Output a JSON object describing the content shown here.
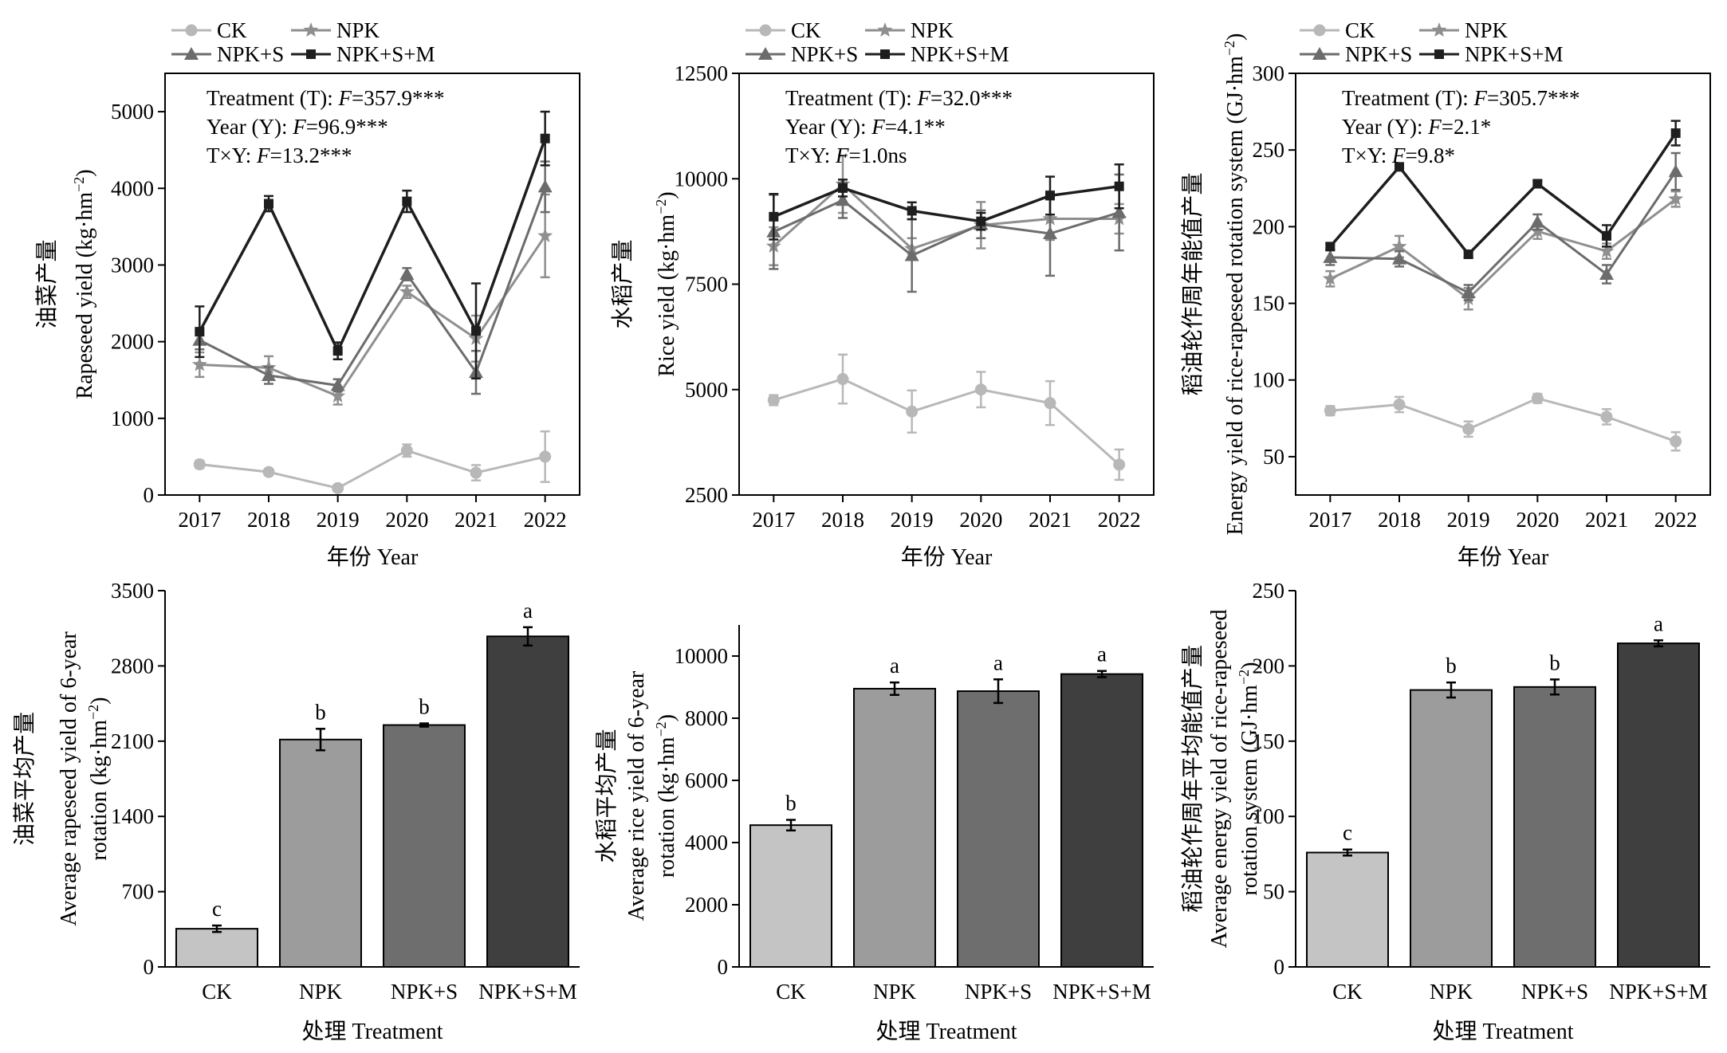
{
  "colors": {
    "CK": "#b8b8b8",
    "NPK": "#8f8f8f",
    "NPK+S": "#6c6c6c",
    "NPK+S+M": "#1e1e1e",
    "bar_CK": "#c4c4c4",
    "bar_NPK": "#9c9c9c",
    "bar_NPK+S": "#6e6e6e",
    "bar_NPK+S+M": "#3f3f3f"
  },
  "legend": {
    "ck": "CK",
    "npk": "NPK",
    "npks": "NPK+S",
    "npksm": "NPK+S+M"
  },
  "chart_data": [
    {
      "type": "line",
      "ylabel_cn": "油菜产量",
      "ylabel_en": "Rapeseed yield (kg·hm⁻²)",
      "xlabel": "年份 Year",
      "x": [
        "2017",
        "2018",
        "2019",
        "2020",
        "2021",
        "2022"
      ],
      "ylim": [
        0,
        5500
      ],
      "yticks": [
        0,
        1000,
        2000,
        3000,
        4000,
        5000
      ],
      "stats": [
        "Treatment (T): F=357.9***",
        "Year (Y): F=96.9***",
        "T×Y: F=13.2***"
      ],
      "series": [
        {
          "name": "CK",
          "marker": "circle",
          "values": [
            400,
            300,
            90,
            580,
            290,
            500
          ],
          "err": [
            50,
            40,
            40,
            80,
            100,
            330
          ]
        },
        {
          "name": "NPK",
          "marker": "star",
          "values": [
            1700,
            1660,
            1290,
            2650,
            2040,
            3380
          ],
          "err": [
            160,
            150,
            110,
            80,
            300,
            540
          ]
        },
        {
          "name": "NPK+S",
          "marker": "triangle",
          "values": [
            2020,
            1560,
            1430,
            2880,
            1600,
            4020
          ],
          "err": [
            120,
            110,
            80,
            80,
            280,
            330
          ]
        },
        {
          "name": "NPK+S+M",
          "marker": "square",
          "values": [
            2130,
            3800,
            1880,
            3830,
            2140,
            4650
          ],
          "err": [
            330,
            100,
            110,
            140,
            620,
            350
          ]
        }
      ]
    },
    {
      "type": "line",
      "ylabel_cn": "水稻产量",
      "ylabel_en": "Rice yield (kg·hm⁻²)",
      "xlabel": "年份 Year",
      "x": [
        "2017",
        "2018",
        "2019",
        "2020",
        "2021",
        "2022"
      ],
      "ylim": [
        2500,
        12500
      ],
      "yticks": [
        2500,
        5000,
        7500,
        10000,
        12500
      ],
      "stats": [
        "Treatment (T): F=32.0***",
        "Year (Y): F=4.1**",
        "T×Y: F=1.0ns"
      ],
      "series": [
        {
          "name": "CK",
          "marker": "circle",
          "values": [
            4750,
            5250,
            4480,
            5000,
            4680,
            3220
          ],
          "err": [
            120,
            580,
            500,
            420,
            520,
            360
          ]
        },
        {
          "name": "NPK",
          "marker": "star",
          "values": [
            8400,
            9870,
            8340,
            8900,
            9050,
            9050
          ],
          "err": [
            450,
            680,
            250,
            550,
            500,
            350
          ]
        },
        {
          "name": "NPK+S",
          "marker": "triangle",
          "values": [
            8740,
            9490,
            8180,
            8920,
            8700,
            9200
          ],
          "err": [
            880,
            420,
            860,
            330,
            1000,
            900
          ]
        },
        {
          "name": "NPK+S+M",
          "marker": "square",
          "values": [
            9100,
            9780,
            9240,
            8990,
            9600,
            9820
          ],
          "err": [
            540,
            200,
            200,
            200,
            450,
            520
          ]
        }
      ]
    },
    {
      "type": "line",
      "ylabel_cn": "稻油轮作周年能值产量",
      "ylabel_en": "Energy yield of rice-rapeseed rotation system (GJ·hm⁻²)",
      "xlabel": "年份 Year",
      "x": [
        "2017",
        "2018",
        "2019",
        "2020",
        "2021",
        "2022"
      ],
      "ylim": [
        25,
        300
      ],
      "yticks": [
        50,
        100,
        150,
        200,
        250,
        300
      ],
      "stats": [
        "Treatment (T): F=305.7***",
        "Year (Y): F=2.1*",
        "T×Y: F=9.8*"
      ],
      "series": [
        {
          "name": "CK",
          "marker": "circle",
          "values": [
            80,
            84,
            68,
            88,
            76,
            60
          ],
          "err": [
            3,
            5,
            5,
            3,
            5,
            6
          ]
        },
        {
          "name": "NPK",
          "marker": "star",
          "values": [
            166,
            187,
            153,
            197,
            184,
            218
          ],
          "err": [
            5,
            7,
            7,
            5,
            5,
            5
          ]
        },
        {
          "name": "NPK+S",
          "marker": "triangle",
          "values": [
            180,
            179,
            157,
            203,
            169,
            236
          ],
          "err": [
            5,
            5,
            5,
            5,
            6,
            12
          ]
        },
        {
          "name": "NPK+S+M",
          "marker": "square",
          "values": [
            187,
            239,
            182,
            228,
            194,
            261
          ],
          "err": [
            2,
            2,
            2,
            2,
            7,
            8
          ]
        }
      ]
    },
    {
      "type": "bar",
      "ylabel_cn": "油菜平均产量",
      "ylabel_en1": "Average rapeseed yield of 6-year",
      "ylabel_en2": "rotation (kg·hm⁻²)",
      "xlabel": "处理 Treatment",
      "categories": [
        "CK",
        "NPK",
        "NPK+S",
        "NPK+S+M"
      ],
      "values": [
        355,
        2115,
        2250,
        3075
      ],
      "err": [
        30,
        100,
        15,
        85
      ],
      "letters": [
        "c",
        "b",
        "b",
        "a"
      ],
      "ylim": [
        0,
        3500
      ],
      "yticks": [
        0,
        700,
        1400,
        2100,
        2800,
        3500
      ]
    },
    {
      "type": "bar",
      "ylabel_cn": "水稻平均产量",
      "ylabel_en1": "Average rice yield of 6-year",
      "ylabel_en2": "rotation (kg·hm⁻²)",
      "xlabel": "处理 Treatment",
      "categories": [
        "CK",
        "NPK",
        "NPK+S",
        "NPK+S+M"
      ],
      "values": [
        4560,
        8950,
        8870,
        9420
      ],
      "err": [
        170,
        200,
        380,
        100
      ],
      "letters": [
        "b",
        "a",
        "a",
        "a"
      ],
      "ylim": [
        0,
        11000
      ],
      "yticks": [
        0,
        2000,
        4000,
        6000,
        8000,
        10000
      ]
    },
    {
      "type": "bar",
      "ylabel_cn": "稻油轮作周年平均能值产量",
      "ylabel_en1": "Average energy yield of rice-rapeseed",
      "ylabel_en2": "rotation system (GJ·hm⁻²)",
      "xlabel": "处理 Treatment",
      "categories": [
        "CK",
        "NPK",
        "NPK+S",
        "NPK+S+M"
      ],
      "values": [
        76,
        184,
        186,
        215
      ],
      "err": [
        2,
        5,
        5,
        2
      ],
      "letters": [
        "c",
        "b",
        "b",
        "a"
      ],
      "ylim": [
        0,
        250
      ],
      "yticks": [
        0,
        50,
        100,
        150,
        200,
        250
      ]
    }
  ]
}
